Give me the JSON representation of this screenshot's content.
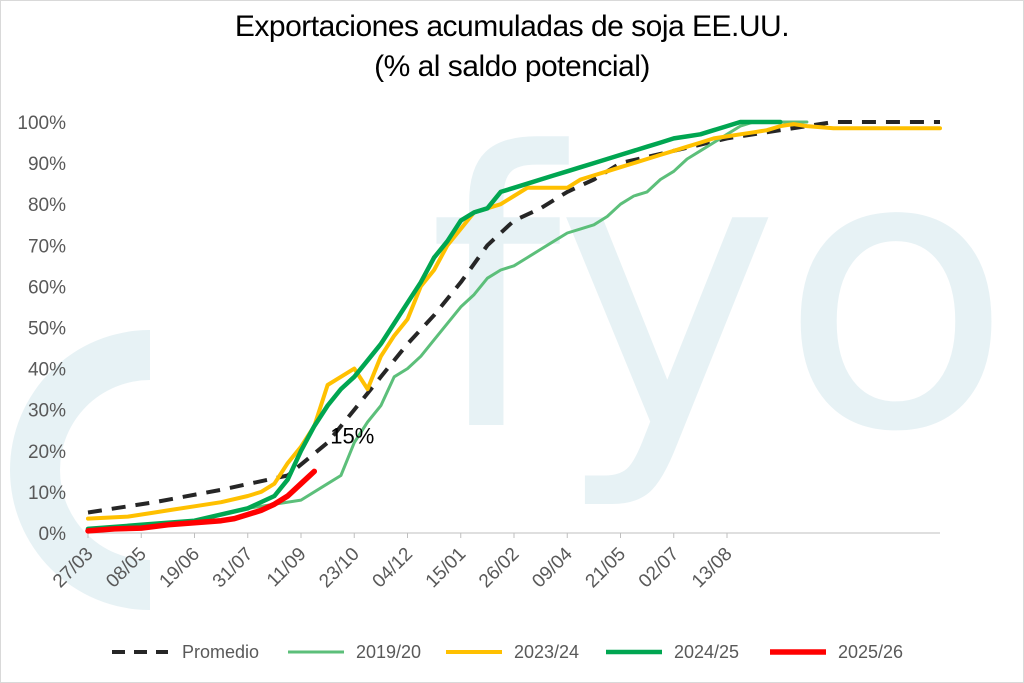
{
  "chart_data": {
    "type": "line",
    "title": "Exportaciones acumuladas de soja EE.UU.",
    "subtitle": "(% al saldo potencial)",
    "x_tick_labels": [
      "27/03",
      "08/05",
      "19/06",
      "31/07",
      "11/09",
      "23/10",
      "04/12",
      "15/01",
      "26/02",
      "09/04",
      "21/05",
      "02/07",
      "13/08"
    ],
    "y_tick_labels": [
      "0%",
      "10%",
      "20%",
      "30%",
      "40%",
      "50%",
      "60%",
      "70%",
      "80%",
      "90%",
      "100%"
    ],
    "ylim": [
      0,
      100
    ],
    "grid": false,
    "legend_position": "bottom",
    "annotation": {
      "text": "15%",
      "x": 20,
      "y": 23
    },
    "watermark": "fyo",
    "series": [
      {
        "name": "Promedio",
        "color": "#262626",
        "style": "dashed",
        "x": [
          0,
          5,
          10,
          15,
          18,
          20,
          22,
          24,
          26,
          28,
          30,
          32,
          34,
          36,
          38,
          40,
          44,
          48,
          52,
          56,
          60,
          64
        ],
        "y": [
          5,
          7.5,
          10.5,
          14,
          22,
          30,
          38,
          46,
          53,
          61,
          70,
          76,
          79,
          83,
          86,
          90,
          93,
          96,
          98,
          100,
          100,
          100
        ]
      },
      {
        "name": "2019/20",
        "color": "#5cbf7a",
        "style": "solid",
        "x": [
          0,
          4,
          8,
          12,
          16,
          18,
          19,
          20,
          21,
          22,
          23,
          24,
          25,
          26,
          27,
          28,
          29,
          30,
          31,
          32,
          33,
          34,
          35,
          36,
          37,
          38,
          39,
          40,
          41,
          42,
          43,
          44,
          45,
          46,
          47,
          48,
          49,
          50,
          51,
          52,
          54
        ],
        "y": [
          1,
          1.5,
          3,
          6,
          8,
          12,
          14,
          22,
          27,
          31,
          38,
          40,
          43,
          47,
          51,
          55,
          58,
          62,
          64,
          65,
          67,
          69,
          71,
          73,
          74,
          75,
          77,
          80,
          82,
          83,
          86,
          88,
          91,
          93,
          95,
          97,
          99,
          100,
          100,
          100,
          100
        ]
      },
      {
        "name": "2023/24",
        "color": "#ffc000",
        "style": "solid",
        "x": [
          0,
          3,
          5,
          6,
          8,
          10,
          12,
          13,
          14,
          15,
          16,
          17,
          18,
          19,
          20,
          21,
          22,
          23,
          24,
          25,
          26,
          27,
          28,
          29,
          30,
          31,
          32,
          33,
          34,
          35,
          36,
          37,
          38,
          39,
          40,
          41,
          42,
          43,
          44,
          45,
          46,
          47,
          48,
          49,
          50,
          51,
          52,
          53,
          54,
          56,
          58,
          60,
          61,
          62,
          63,
          64
        ],
        "y": [
          3.5,
          4,
          5,
          5.5,
          6.5,
          7.5,
          9,
          10,
          12,
          17,
          21,
          26,
          36,
          38,
          40,
          35,
          43,
          48,
          52,
          60,
          64,
          70,
          74,
          78,
          79,
          80,
          82,
          84,
          84,
          84,
          84,
          86,
          87,
          88,
          89,
          90,
          91,
          92,
          93,
          94,
          95,
          96,
          96.5,
          97,
          97.5,
          98,
          99,
          99.5,
          99,
          98.5,
          98.5,
          98.5,
          98.5,
          98.5,
          98.5,
          98.5
        ]
      },
      {
        "name": "2024/25",
        "color": "#00a651",
        "style": "solid",
        "x": [
          0,
          4,
          8,
          12,
          14,
          15,
          16,
          17,
          18,
          19,
          20,
          21,
          22,
          23,
          24,
          25,
          26,
          27,
          28,
          29,
          30,
          31,
          32,
          33,
          34,
          35,
          36,
          37,
          38,
          39,
          40,
          41,
          42,
          43,
          44,
          45,
          46,
          47,
          48,
          49,
          50,
          51,
          52
        ],
        "y": [
          1,
          2,
          3,
          6,
          9,
          13,
          20,
          26,
          31,
          35,
          38,
          42,
          46,
          51,
          56,
          61,
          67,
          71,
          76,
          78,
          79,
          83,
          84,
          85,
          86,
          87,
          88,
          89,
          90,
          91,
          92,
          93,
          94,
          95,
          96,
          96.5,
          97,
          98,
          99,
          100,
          100,
          100,
          100
        ]
      },
      {
        "name": "2025/26",
        "color": "#ff0000",
        "style": "solid",
        "x": [
          0,
          2,
          4,
          6,
          8,
          10,
          11,
          12,
          13,
          14,
          15,
          16,
          17
        ],
        "y": [
          0.5,
          1,
          1.2,
          2,
          2.5,
          3,
          3.5,
          4.5,
          5.5,
          7,
          9,
          12,
          15
        ]
      }
    ]
  }
}
